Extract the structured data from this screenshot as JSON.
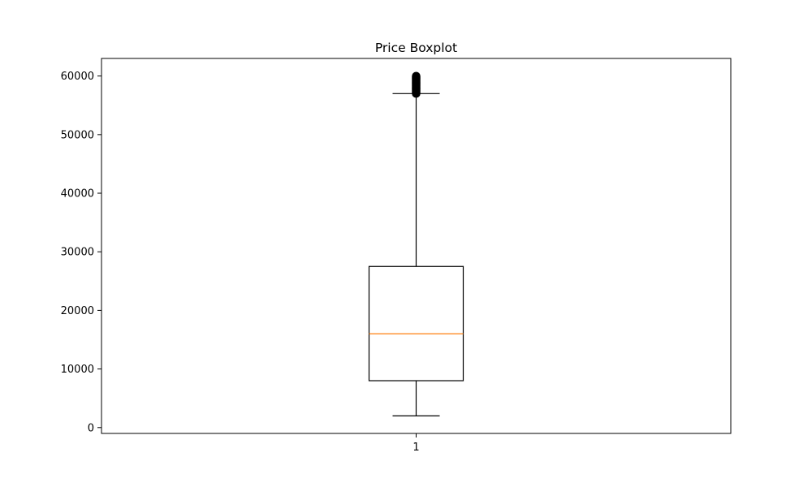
{
  "chart_data": {
    "type": "boxplot",
    "title": "Price Boxplot",
    "xlabel": "",
    "ylabel": "",
    "categories": [
      "1"
    ],
    "ylim": [
      -1000,
      63000
    ],
    "yticks": [
      0,
      10000,
      20000,
      30000,
      40000,
      50000,
      60000
    ],
    "yticklabels": [
      "0",
      "10000",
      "20000",
      "30000",
      "40000",
      "50000",
      "60000"
    ],
    "grid": false,
    "boxes": [
      {
        "category": "1",
        "whisker_low": 2000,
        "q1": 8000,
        "median": 16000,
        "q3": 27500,
        "whisker_high": 57000,
        "outliers": [
          57000,
          57100,
          57200,
          57300,
          57400,
          57500,
          57600,
          57700,
          57800,
          57900,
          58000,
          58100,
          58200,
          58300,
          58400,
          58500,
          58600,
          58700,
          58800,
          58900,
          59000,
          59100,
          59200,
          59300,
          59400,
          59500,
          59600,
          59700,
          59800,
          59900,
          60000
        ]
      }
    ],
    "colors": {
      "box": "#000000",
      "median": "#ff7f0e",
      "whisker": "#000000",
      "outlier": "#000000"
    }
  }
}
